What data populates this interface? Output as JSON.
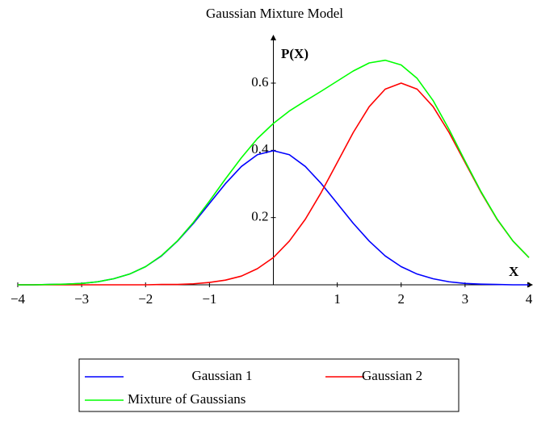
{
  "chart_data": {
    "type": "line",
    "title": "Gaussian Mixture Model",
    "x_label": "X",
    "y_label": "P(X)",
    "x": [
      -4,
      -3.75,
      -3.5,
      -3.25,
      -3,
      -2.75,
      -2.5,
      -2.25,
      -2,
      -1.75,
      -1.5,
      -1.25,
      -1,
      -0.75,
      -0.5,
      -0.25,
      0,
      0.25,
      0.5,
      0.75,
      1,
      1.25,
      1.5,
      1.75,
      2,
      2.25,
      2.5,
      2.75,
      3,
      3.25,
      3.5,
      3.75,
      4
    ],
    "series": [
      {
        "name": "Gaussian 1",
        "color": "#0000ff",
        "values": [
          0,
          0,
          0.001,
          0.002,
          0.004,
          0.009,
          0.018,
          0.032,
          0.054,
          0.086,
          0.13,
          0.183,
          0.242,
          0.301,
          0.352,
          0.387,
          0.399,
          0.387,
          0.352,
          0.301,
          0.242,
          0.183,
          0.13,
          0.086,
          0.054,
          0.032,
          0.018,
          0.009,
          0.004,
          0.002,
          0.001,
          0,
          0
        ]
      },
      {
        "name": "Gaussian 2",
        "color": "#ff0000",
        "values": [
          0,
          0,
          0,
          0,
          0,
          0,
          0,
          0,
          0,
          0.001,
          0.001,
          0.003,
          0.007,
          0.014,
          0.026,
          0.048,
          0.081,
          0.13,
          0.195,
          0.275,
          0.364,
          0.453,
          0.53,
          0.582,
          0.6,
          0.582,
          0.53,
          0.453,
          0.364,
          0.275,
          0.195,
          0.13,
          0.081
        ]
      },
      {
        "name": "Mixture of Gaussians",
        "color": "#00ff00",
        "values": [
          0,
          0,
          0.001,
          0.002,
          0.004,
          0.009,
          0.018,
          0.032,
          0.054,
          0.087,
          0.131,
          0.186,
          0.249,
          0.315,
          0.378,
          0.435,
          0.48,
          0.517,
          0.547,
          0.576,
          0.606,
          0.636,
          0.66,
          0.668,
          0.654,
          0.614,
          0.548,
          0.462,
          0.368,
          0.277,
          0.196,
          0.13,
          0.081
        ]
      }
    ],
    "xlim": [
      -4,
      4
    ],
    "ylim": [
      0,
      0.72
    ],
    "xticks": [
      {
        "value": -4,
        "label": "−4"
      },
      {
        "value": -3,
        "label": "−3"
      },
      {
        "value": -2,
        "label": "−2"
      },
      {
        "value": -1,
        "label": "−1"
      },
      1,
      2,
      3,
      4
    ],
    "yticks": [
      0.2,
      0.4,
      0.6
    ],
    "legend": "bottom"
  }
}
